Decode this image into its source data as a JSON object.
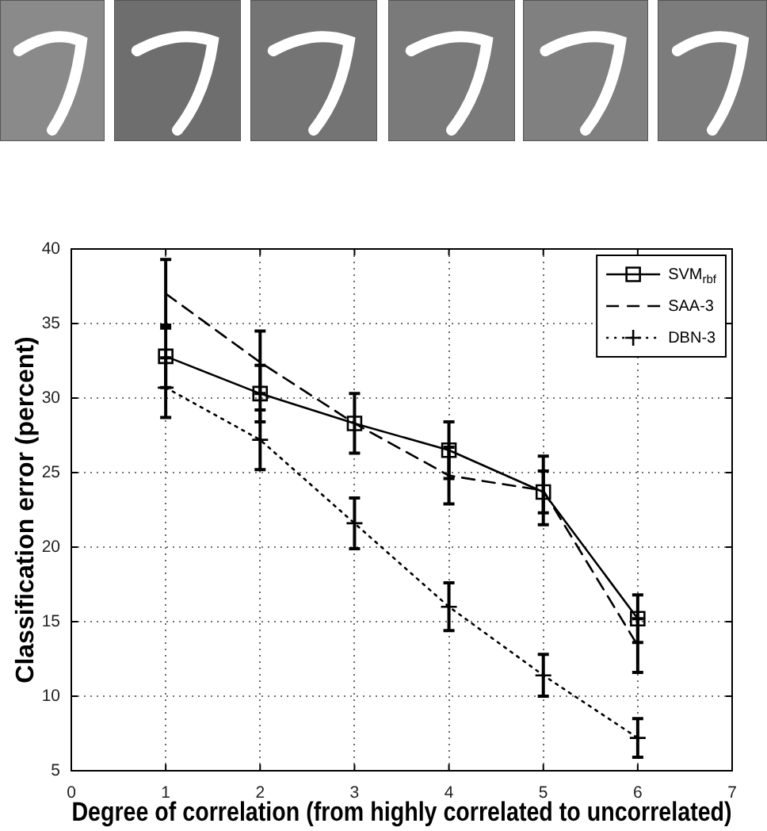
{
  "chart_data": {
    "type": "line",
    "xlabel": "Degree of correlation (from highly correlated to uncorrelated)",
    "ylabel": "Classification error (percent)",
    "xlim": [
      0,
      7
    ],
    "xticks": [
      0,
      1,
      2,
      3,
      4,
      5,
      6,
      7
    ],
    "ylim": [
      5,
      40
    ],
    "yticks": [
      5,
      10,
      15,
      20,
      25,
      30,
      35,
      40
    ],
    "grid": true,
    "legend": "top right",
    "x": [
      1,
      2,
      3,
      4,
      5,
      6
    ],
    "series": [
      {
        "name": "SVM$_{rbf}$",
        "color": "#000000",
        "marker": "square",
        "line_style": "solid",
        "values": [
          32.8,
          30.3,
          28.3,
          26.5,
          23.7,
          15.2
        ],
        "errors": [
          2.1,
          1.9,
          2.0,
          1.9,
          1.4,
          1.6
        ]
      },
      {
        "name": "SAA-3",
        "color": "#000000",
        "marker": "none",
        "line_style": "dashed",
        "values": [
          37.0,
          32.4,
          28.3,
          24.8,
          23.8,
          13.4
        ],
        "errors": [
          2.3,
          2.1,
          null,
          1.9,
          2.3,
          1.8
        ]
      },
      {
        "name": "DBN-3",
        "color": "#000000",
        "marker": "cross",
        "line_style": "dotted",
        "values": [
          30.7,
          27.2,
          21.6,
          16.0,
          11.4,
          7.2
        ],
        "errors": [
          2.0,
          2.0,
          1.7,
          1.6,
          1.4,
          1.3
        ]
      }
    ]
  }
}
